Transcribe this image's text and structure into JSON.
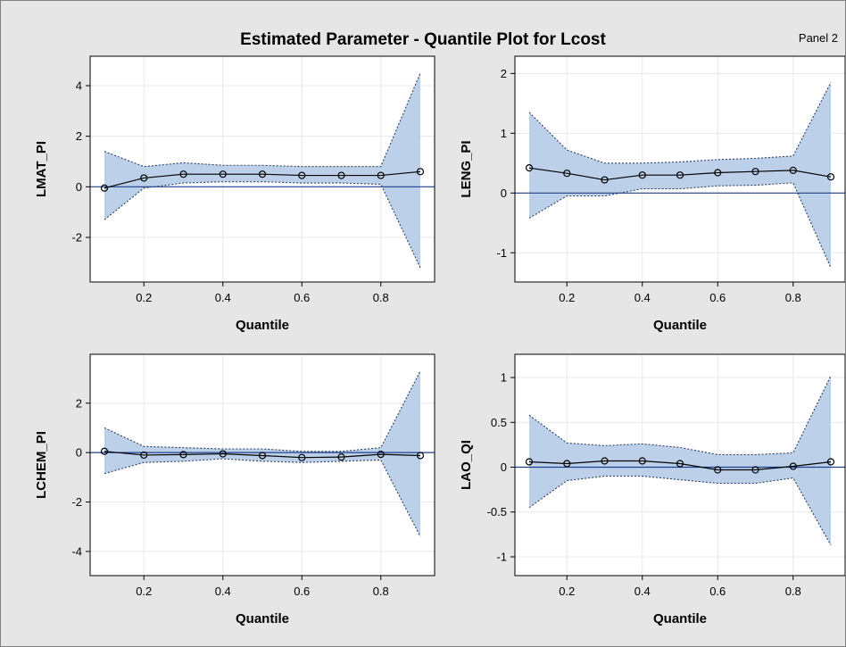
{
  "title": "Estimated Parameter - Quantile Plot for Lcost",
  "panel_label": "Panel 2",
  "colors": {
    "background": "#e6e6e6",
    "band": "#bcd0ea",
    "band_edge": "#2b3f5c",
    "line": "#000000",
    "zero_line": "#1f3f8f",
    "grid": "#e8e8e8"
  },
  "chart_data": [
    {
      "type": "line",
      "xlabel": "Quantile",
      "ylabel": "LMAT_PI",
      "xlim": [
        0.1,
        0.9
      ],
      "ylim": [
        -3.2,
        4.6
      ],
      "xticks": [
        "0.2",
        "0.4",
        "0.6",
        "0.8"
      ],
      "yticks": [
        "-2",
        "0",
        "2",
        "4"
      ],
      "grid": true,
      "x": [
        0.1,
        0.2,
        0.3,
        0.4,
        0.5,
        0.6,
        0.7,
        0.8,
        0.9
      ],
      "estimate": [
        -0.05,
        0.35,
        0.5,
        0.5,
        0.5,
        0.45,
        0.45,
        0.45,
        0.6
      ],
      "upper": [
        1.4,
        0.8,
        0.95,
        0.85,
        0.85,
        0.8,
        0.8,
        0.8,
        4.5
      ],
      "lower": [
        -1.3,
        -0.05,
        0.15,
        0.2,
        0.2,
        0.15,
        0.15,
        0.1,
        -3.2
      ]
    },
    {
      "type": "line",
      "xlabel": "Quantile",
      "ylabel": "LENG_PI",
      "xlim": [
        0.1,
        0.9
      ],
      "ylim": [
        -1.25,
        2.05
      ],
      "xticks": [
        "0.2",
        "0.4",
        "0.6",
        "0.8"
      ],
      "yticks": [
        "-1",
        "0",
        "1",
        "2"
      ],
      "grid": true,
      "x": [
        0.1,
        0.2,
        0.3,
        0.4,
        0.5,
        0.6,
        0.7,
        0.8,
        0.9
      ],
      "estimate": [
        0.42,
        0.33,
        0.22,
        0.3,
        0.3,
        0.34,
        0.36,
        0.38,
        0.27
      ],
      "upper": [
        1.35,
        0.72,
        0.5,
        0.5,
        0.52,
        0.56,
        0.58,
        0.62,
        1.85
      ],
      "lower": [
        -0.42,
        -0.05,
        -0.05,
        0.07,
        0.07,
        0.12,
        0.13,
        0.17,
        -1.25
      ]
    },
    {
      "type": "line",
      "xlabel": "Quantile",
      "ylabel": "LCHEM_PI",
      "xlim": [
        0.1,
        0.9
      ],
      "ylim": [
        -4.4,
        3.4
      ],
      "xticks": [
        "0.2",
        "0.4",
        "0.6",
        "0.8"
      ],
      "yticks": [
        "-4",
        "-2",
        "0",
        "2"
      ],
      "grid": true,
      "x": [
        0.1,
        0.2,
        0.3,
        0.4,
        0.5,
        0.6,
        0.7,
        0.8,
        0.9
      ],
      "estimate": [
        0.05,
        -0.1,
        -0.08,
        -0.05,
        -0.12,
        -0.2,
        -0.18,
        -0.07,
        -0.12
      ],
      "upper": [
        1.0,
        0.25,
        0.2,
        0.15,
        0.15,
        0.05,
        0.05,
        0.2,
        3.3
      ],
      "lower": [
        -0.85,
        -0.4,
        -0.35,
        -0.25,
        -0.35,
        -0.4,
        -0.35,
        -0.3,
        -3.4
      ]
    },
    {
      "type": "line",
      "xlabel": "Quantile",
      "ylabel": "LAO_QI",
      "xlim": [
        0.1,
        0.9
      ],
      "ylim": [
        -1.05,
        1.1
      ],
      "xticks": [
        "0.2",
        "0.4",
        "0.6",
        "0.8"
      ],
      "yticks": [
        "-1",
        "-0.5",
        "0",
        "0.5",
        "1"
      ],
      "grid": true,
      "x": [
        0.1,
        0.2,
        0.3,
        0.4,
        0.5,
        0.6,
        0.7,
        0.8,
        0.9
      ],
      "estimate": [
        0.06,
        0.04,
        0.07,
        0.07,
        0.04,
        -0.03,
        -0.03,
        0.01,
        0.06
      ],
      "upper": [
        0.58,
        0.27,
        0.24,
        0.26,
        0.22,
        0.14,
        0.14,
        0.16,
        1.02
      ],
      "lower": [
        -0.45,
        -0.15,
        -0.1,
        -0.1,
        -0.14,
        -0.18,
        -0.18,
        -0.12,
        -0.87
      ]
    }
  ]
}
